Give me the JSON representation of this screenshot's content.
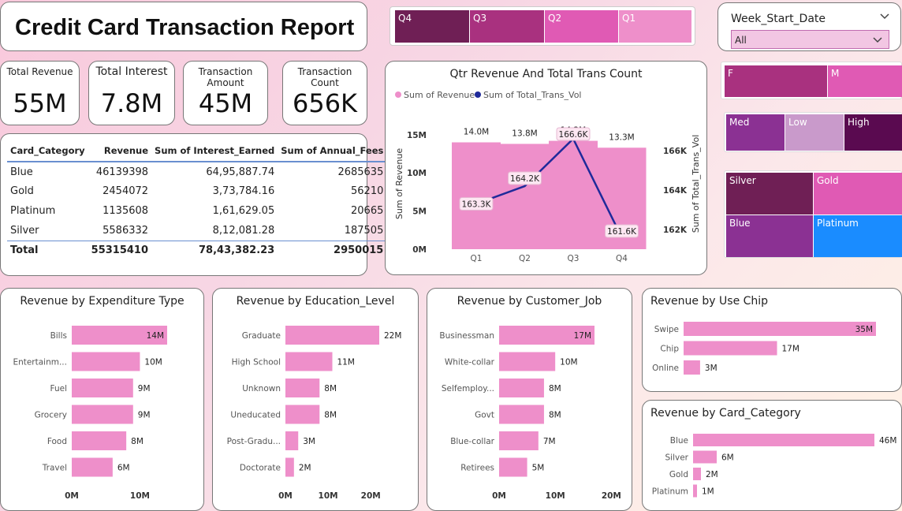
{
  "title": "Credit Card Transaction Report",
  "kpis": [
    {
      "label": "Total Revenue",
      "value": "55M"
    },
    {
      "label": "Total Interest",
      "value": "7.8M"
    },
    {
      "label": "Transaction Amount",
      "value": "45M"
    },
    {
      "label": "Transaction Count",
      "value": "656K"
    }
  ],
  "quarter_slicer": [
    {
      "label": "Q4",
      "color": "#6f1f55"
    },
    {
      "label": "Q3",
      "color": "#a9317f"
    },
    {
      "label": "Q2",
      "color": "#e05ab4"
    },
    {
      "label": "Q1",
      "color": "#ee8fca"
    }
  ],
  "week_slicer": {
    "title": "Week_Start_Date",
    "value": "All"
  },
  "gender_tiles": [
    {
      "label": "F",
      "color": "#a9317f"
    },
    {
      "label": "M",
      "color": "#e05ab4"
    }
  ],
  "sat_tiles": [
    {
      "label": "Med",
      "color": "#8b3193"
    },
    {
      "label": "Low",
      "color": "#c99acb"
    },
    {
      "label": "High",
      "color": "#5a0a50"
    }
  ],
  "card_tiles": [
    {
      "label": "Silver",
      "color": "#6f1f55"
    },
    {
      "label": "Gold",
      "color": "#e05ab4"
    },
    {
      "label": "Blue",
      "color": "#8b3193"
    },
    {
      "label": "Platinum",
      "color": "#1a8cff"
    }
  ],
  "table": {
    "headers": [
      "Card_Category",
      "Revenue",
      "Sum of Interest_Earned",
      "Sum of Annual_Fees"
    ],
    "rows": [
      [
        "Blue",
        "46139398",
        "64,95,887.74",
        "2685635"
      ],
      [
        "Gold",
        "2454072",
        "3,73,784.16",
        "56210"
      ],
      [
        "Platinum",
        "1135608",
        "1,61,629.05",
        "20665"
      ],
      [
        "Silver",
        "5586332",
        "8,12,081.28",
        "187505"
      ]
    ],
    "total": [
      "Total",
      "55315410",
      "78,43,382.23",
      "2950015"
    ]
  },
  "chart_data": [
    {
      "type": "bar",
      "title": "Qtr Revenue And Total Trans Count",
      "categories": [
        "Q1",
        "Q2",
        "Q3",
        "Q4"
      ],
      "series": [
        {
          "name": "Sum of Revenue",
          "type": "bar",
          "values": [
            14.0,
            13.8,
            14.2,
            13.3
          ],
          "labels": [
            "14.0M",
            "13.8M",
            "14.2M",
            "13.3M"
          ]
        },
        {
          "name": "Sum of Total_Trans_Vol",
          "type": "line",
          "values": [
            163.3,
            164.2,
            166.6,
            161.6
          ],
          "labels": [
            "163.3K",
            "164.2K",
            "166.6K",
            "161.6K"
          ]
        }
      ],
      "ylabel": "Sum of Revenue",
      "y2label": "Sum of Total_Trans_Vol",
      "yticks": [
        "0M",
        "5M",
        "10M",
        "15M"
      ],
      "y2ticks": [
        "162K",
        "164K",
        "166K"
      ],
      "ylim": [
        0,
        15.5
      ],
      "y2lim": [
        161.0,
        167.0
      ],
      "legend": "top-left",
      "colors": {
        "bar": "#ee8fca",
        "line": "#1f2a9a"
      }
    },
    {
      "type": "bar",
      "title": "Revenue by Expenditure Type",
      "categories": [
        "Bills",
        "Entertainm...",
        "Fuel",
        "Grocery",
        "Food",
        "Travel"
      ],
      "values": [
        14,
        10,
        9,
        9,
        8,
        6
      ],
      "labels": [
        "14M",
        "10M",
        "9M",
        "9M",
        "8M",
        "6M"
      ],
      "xticks": [
        "0M",
        "10M"
      ],
      "xlim": [
        0,
        14
      ],
      "color": "#ee8fca"
    },
    {
      "type": "bar",
      "title": "Revenue by Education_Level",
      "categories": [
        "Graduate",
        "High School",
        "Unknown",
        "Uneducated",
        "Post-Gradu...",
        "Doctorate"
      ],
      "values": [
        22,
        11,
        8,
        8,
        3,
        2
      ],
      "labels": [
        "22M",
        "11M",
        "8M",
        "8M",
        "3M",
        "2M"
      ],
      "xticks": [
        "0M",
        "10M",
        "20M"
      ],
      "xlim": [
        0,
        22
      ],
      "color": "#ee8fca"
    },
    {
      "type": "bar",
      "title": "Revenue by Customer_Job",
      "categories": [
        "Businessman",
        "White-collar",
        "Selfemploy...",
        "Govt",
        "Blue-collar",
        "Retirees"
      ],
      "values": [
        17,
        10,
        8,
        8,
        7,
        5
      ],
      "labels": [
        "17M",
        "10M",
        "8M",
        "8M",
        "7M",
        "5M"
      ],
      "xticks": [
        "0M",
        "10M",
        "20M"
      ],
      "xlim": [
        0,
        17
      ],
      "color": "#ee8fca"
    },
    {
      "type": "bar",
      "title": "Revenue by Use Chip",
      "categories": [
        "Swipe",
        "Chip",
        "Online"
      ],
      "values": [
        35,
        17,
        3
      ],
      "labels": [
        "35M",
        "17M",
        "3M"
      ],
      "xlim": [
        0,
        35
      ],
      "color": "#ee8fca"
    },
    {
      "type": "bar",
      "title": "Revenue by Card_Category",
      "categories": [
        "Blue",
        "Silver",
        "Gold",
        "Platinum"
      ],
      "values": [
        46,
        6,
        2,
        1
      ],
      "labels": [
        "46M",
        "6M",
        "2M",
        "1M"
      ],
      "xlim": [
        0,
        46
      ],
      "color": "#ee8fca"
    }
  ]
}
